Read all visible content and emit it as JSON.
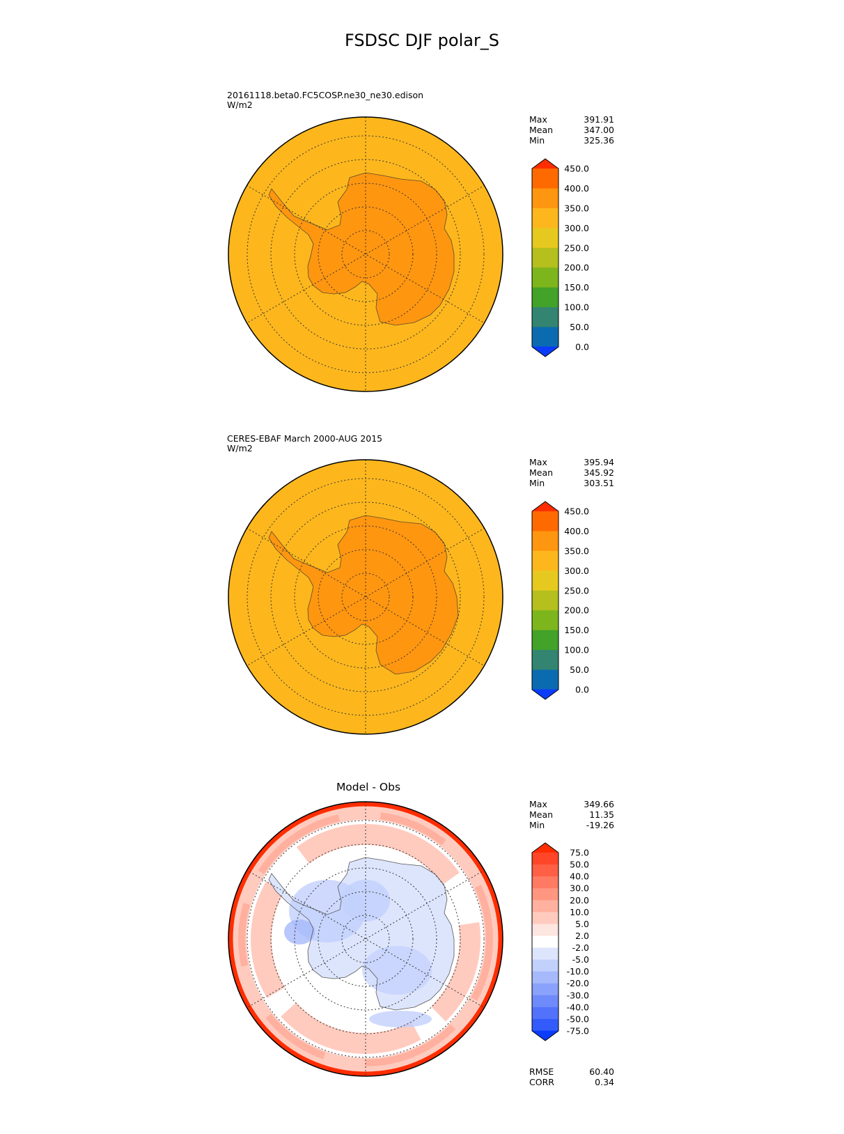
{
  "title": "FSDSC DJF polar_S",
  "panels": [
    {
      "id": "model",
      "title_lines": [
        "20161118.beta0.FC5COSP.ne30_ne30.edison",
        "W/m2"
      ],
      "stats": [
        {
          "label": "Max",
          "value": "391.91"
        },
        {
          "label": "Mean",
          "value": "347.00"
        },
        {
          "label": "Min",
          "value": "325.36"
        }
      ],
      "colorbar": {
        "levels": [
          "450.0",
          "400.0",
          "350.0",
          "300.0",
          "250.0",
          "200.0",
          "150.0",
          "100.0",
          "50.0",
          "0.0"
        ],
        "colors": [
          "#ff2d00",
          "#ff6a00",
          "#ff9610",
          "#fdb71d",
          "#e6c91f",
          "#b5bf1e",
          "#7db51c",
          "#42a22a",
          "#338470",
          "#0b6bb0",
          "#0b3cfa"
        ]
      }
    },
    {
      "id": "obs",
      "title_lines": [
        "CERES-EBAF March 2000-AUG 2015",
        "W/m2"
      ],
      "stats": [
        {
          "label": "Max",
          "value": "395.94"
        },
        {
          "label": "Mean",
          "value": "345.92"
        },
        {
          "label": "Min",
          "value": "303.51"
        }
      ],
      "colorbar": {
        "levels": [
          "450.0",
          "400.0",
          "350.0",
          "300.0",
          "250.0",
          "200.0",
          "150.0",
          "100.0",
          "50.0",
          "0.0"
        ],
        "colors": [
          "#ff2d00",
          "#ff6a00",
          "#ff9610",
          "#fdb71d",
          "#e6c91f",
          "#b5bf1e",
          "#7db51c",
          "#42a22a",
          "#338470",
          "#0b6bb0",
          "#0b3cfa"
        ]
      }
    },
    {
      "id": "diff",
      "title_lines": [
        "Model - Obs"
      ],
      "stats": [
        {
          "label": "Max",
          "value": "349.66"
        },
        {
          "label": "Mean",
          "value": "11.35"
        },
        {
          "label": "Min",
          "value": "-19.26"
        }
      ],
      "extra_stats": [
        {
          "label": "RMSE",
          "value": "60.40"
        },
        {
          "label": "CORR",
          "value": "0.34"
        }
      ],
      "colorbar": {
        "levels": [
          "75.0",
          "50.0",
          "40.0",
          "30.0",
          "20.0",
          "10.0",
          "5.0",
          "2.0",
          "-2.0",
          "-5.0",
          "-10.0",
          "-20.0",
          "-30.0",
          "-40.0",
          "-50.0",
          "-75.0"
        ],
        "colors": [
          "#ff2d00",
          "#ff4628",
          "#ff5f45",
          "#ff7a62",
          "#ff967f",
          "#ffb09f",
          "#ffcbbf",
          "#fde5e0",
          "#ffffff",
          "#dde5fd",
          "#c2d0fc",
          "#a6b9fb",
          "#8aa2fb",
          "#6e8afb",
          "#5272fb",
          "#335bfb",
          "#0b3cfa"
        ]
      }
    }
  ],
  "colors": {
    "ocean_abs": "#fdb71d",
    "land_abs": "#ff9610",
    "diff_pos": "#ffb09f",
    "diff_neg": "#c2d0fc",
    "diff_edge": "#ff2d00"
  }
}
